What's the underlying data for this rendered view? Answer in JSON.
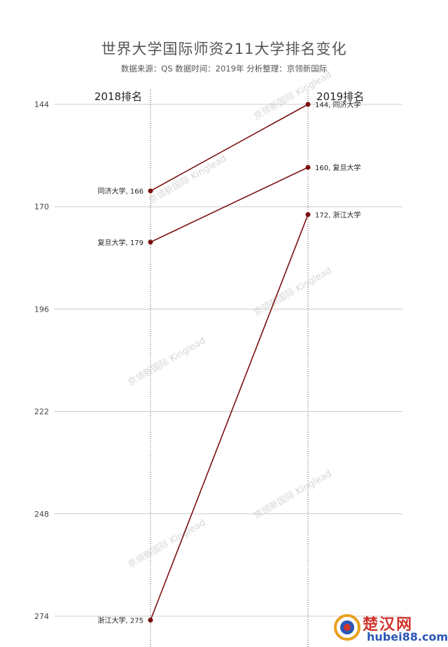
{
  "chart_data": {
    "type": "slope",
    "title": "世界大学国际师资211大学排名变化",
    "subtitle": "数据来源：QS 数据时间：2019年 分析整理：京领新国际",
    "columns": [
      "2018排名",
      "2019排名"
    ],
    "y_ticks": [
      "144",
      "170",
      "196",
      "222",
      "248",
      "274"
    ],
    "ylim": [
      144,
      274
    ],
    "y_inverted": true,
    "grid": true,
    "series": [
      {
        "name": "同济大学",
        "values": [
          166,
          144
        ],
        "label_2018": "同济大学, 166",
        "label_2019": "144, 同济大学"
      },
      {
        "name": "复旦大学",
        "values": [
          179,
          160
        ],
        "label_2018": "复旦大学, 179",
        "label_2019": "160, 复旦大学"
      },
      {
        "name": "浙江大学",
        "values": [
          275,
          172
        ],
        "label_2018": "浙江大学, 275",
        "label_2019": "172, 浙江大学"
      }
    ],
    "line_color": "#7b1010",
    "grid_color": "#cccccc"
  },
  "watermark": "京领新国际 Kinglead",
  "logo": {
    "top": "楚汉网",
    "bottom": "hubei88.com"
  }
}
